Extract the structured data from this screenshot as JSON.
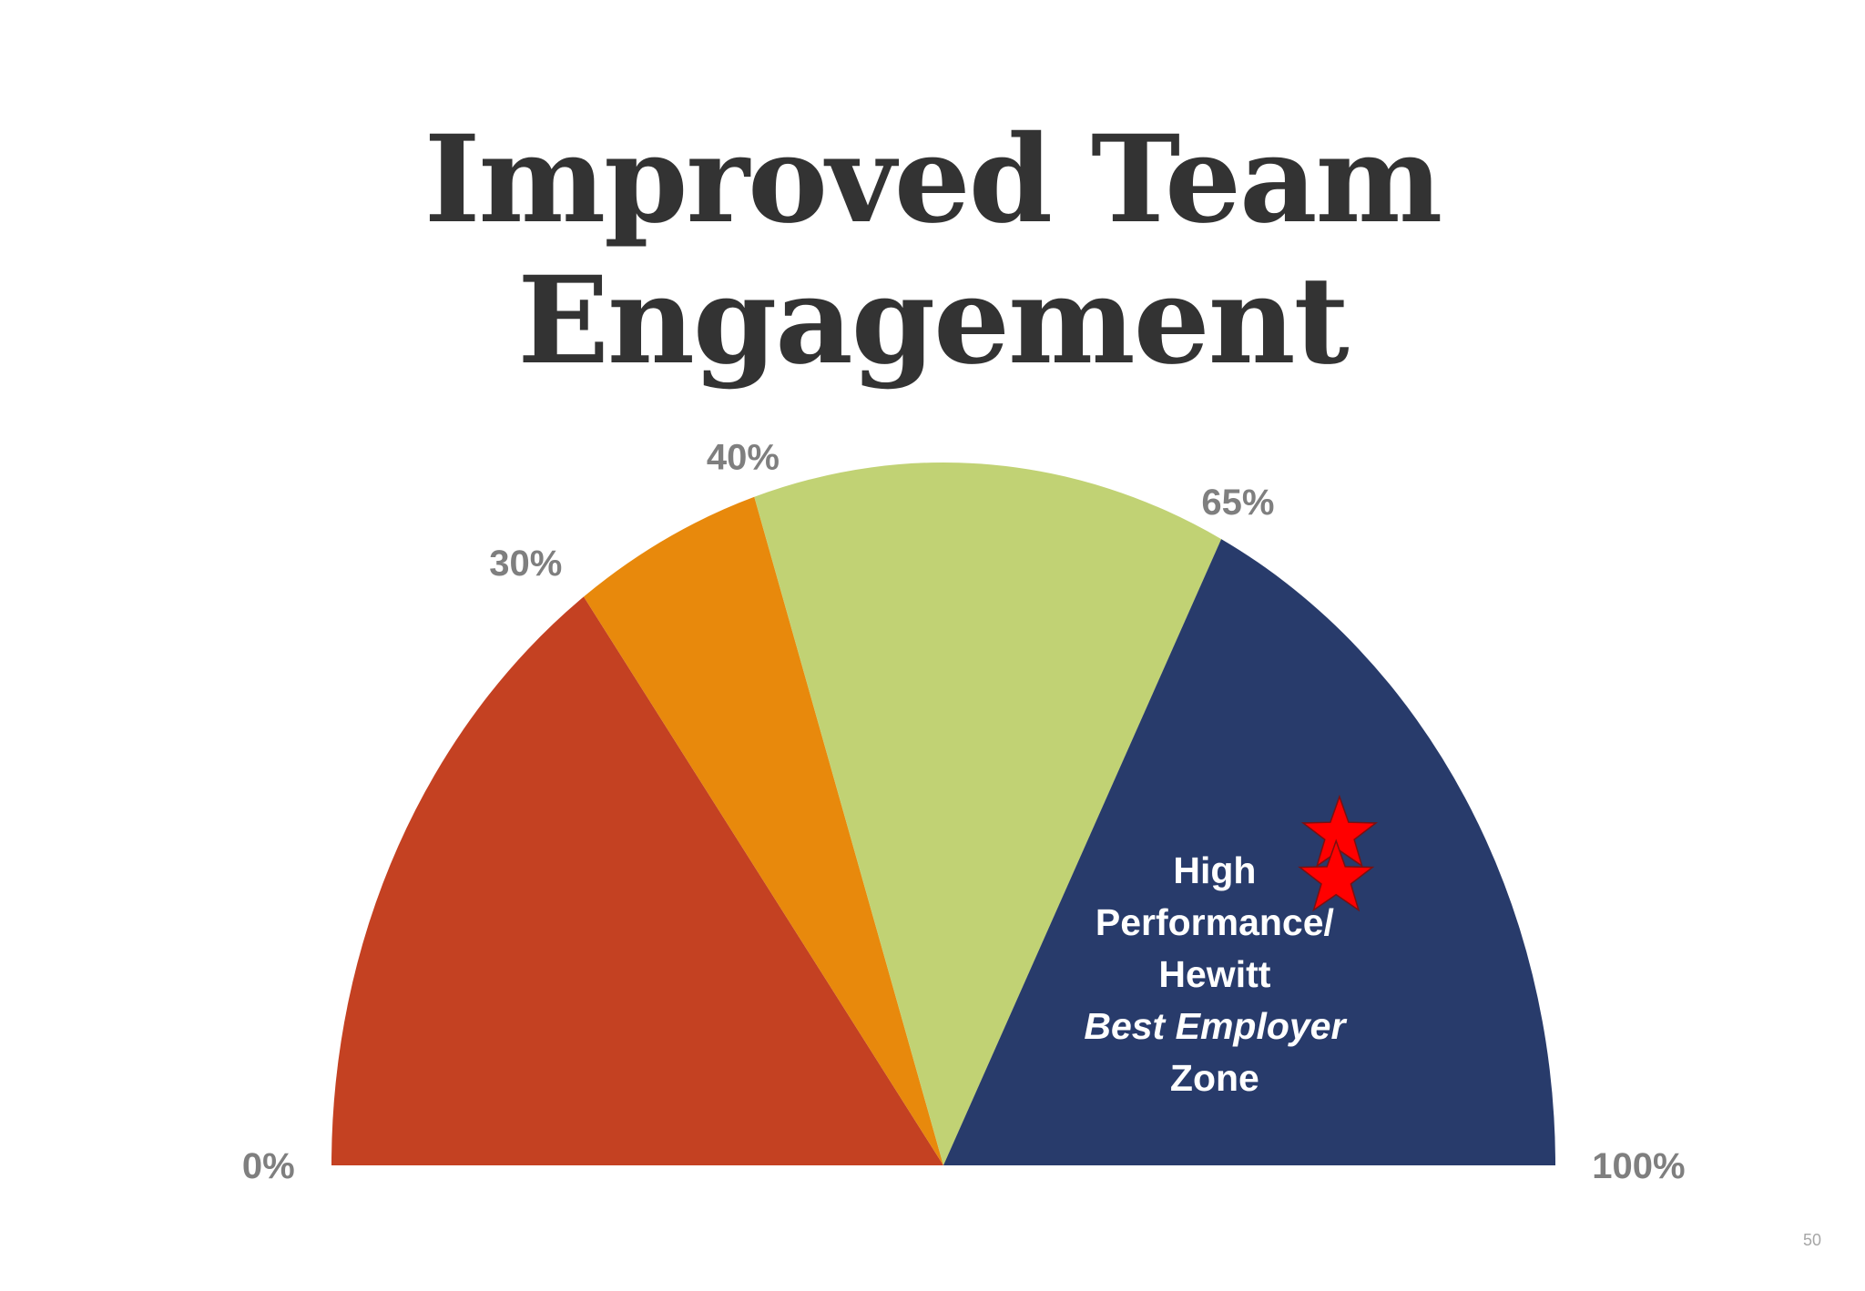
{
  "slide": {
    "title": "Improved Team Engagement",
    "page_number": "50"
  },
  "chart_data": {
    "type": "gauge",
    "title": "Improved Team Engagement",
    "axis": {
      "min": 0,
      "max": 100,
      "unit": "%"
    },
    "segments": [
      {
        "from": 0,
        "to": 30,
        "color": "#c44122"
      },
      {
        "from": 30,
        "to": 40,
        "color": "#e8890c"
      },
      {
        "from": 40,
        "to": 65,
        "color": "#c1d274"
      },
      {
        "from": 65,
        "to": 100,
        "color": "#283b6b"
      }
    ],
    "tick_labels": [
      {
        "value": 0,
        "text": "0%"
      },
      {
        "value": 30,
        "text": "30%"
      },
      {
        "value": 40,
        "text": "40%"
      },
      {
        "value": 65,
        "text": "65%"
      },
      {
        "value": 100,
        "text": "100%"
      }
    ],
    "zone_label": {
      "segment_index": 3,
      "lines": [
        "High",
        "Performance/",
        "Hewitt",
        "Best Employer",
        "Zone"
      ],
      "italic_lines": [
        3
      ]
    },
    "markers": [
      {
        "value": 80,
        "shape": "star",
        "color": "#ff0000"
      },
      {
        "value": 82,
        "shape": "star",
        "color": "#ff0000"
      }
    ]
  }
}
